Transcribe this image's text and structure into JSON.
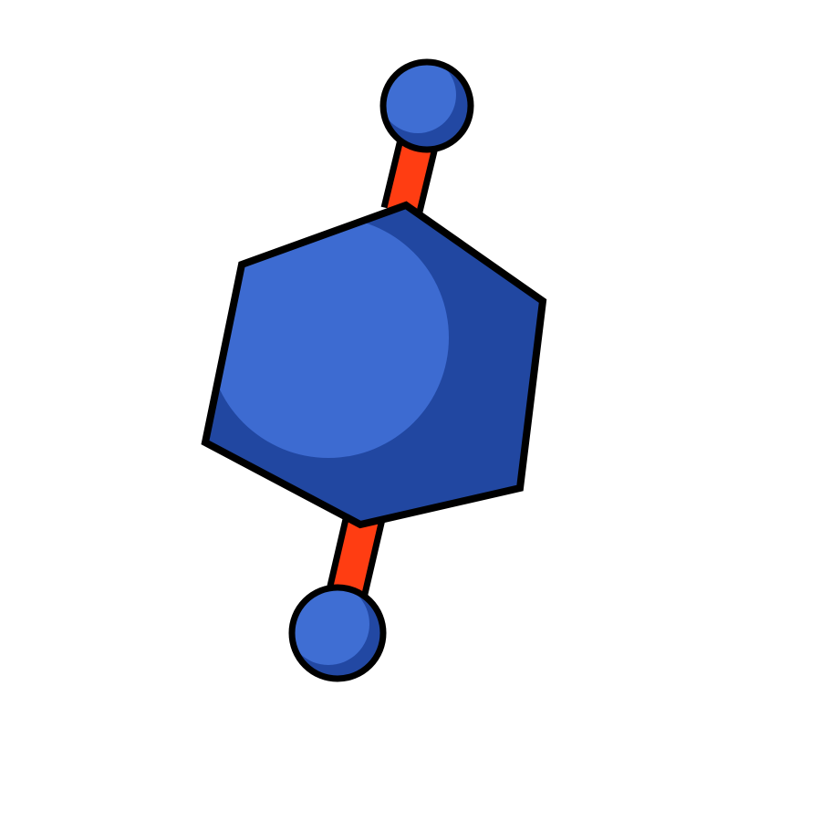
{
  "scene": {
    "subject": "molecule-icon",
    "colors": {
      "background": "#ffffff",
      "outline": "#000000",
      "bond": "#ff3d12",
      "body_shadow": "#2147a1",
      "body_highlight": "#3d6bd1",
      "atom_shadow": "#2248a3",
      "atom_highlight": "#3f6ed3"
    }
  }
}
